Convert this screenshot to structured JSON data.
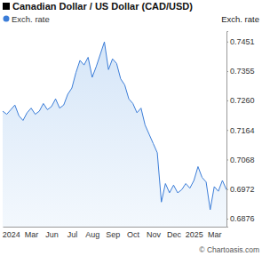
{
  "chart_data": {
    "type": "area",
    "title": "Canadian Dollar / US Dollar (CAD/USD)",
    "ylabel": "Exch. rate",
    "annotations": [
      "© Chartoasis.com"
    ],
    "categories": [
      null,
      null,
      "2024",
      null,
      null,
      null,
      null,
      "Mar",
      null,
      null,
      null,
      null,
      "Jun",
      null,
      null,
      null,
      null,
      "Jul",
      null,
      null,
      null,
      null,
      "Aug",
      null,
      null,
      null,
      null,
      "Sep",
      null,
      null,
      null,
      null,
      "Oct",
      null,
      null,
      null,
      null,
      "Nov",
      null,
      null,
      null,
      null,
      "Dec",
      null,
      null,
      null,
      null,
      "2025",
      null,
      null,
      null,
      null,
      "Mar",
      null,
      null,
      null
    ],
    "series": [
      {
        "name": "Exch. rate",
        "color": "#3b7dd8",
        "values": [
          0.7225,
          0.7215,
          0.723,
          0.7245,
          0.721,
          0.7195,
          0.722,
          0.7235,
          0.7215,
          0.7225,
          0.725,
          0.723,
          0.724,
          0.7265,
          0.7235,
          0.7245,
          0.728,
          0.73,
          0.735,
          0.739,
          0.7375,
          0.74,
          0.7335,
          0.737,
          0.741,
          0.745,
          0.736,
          0.7395,
          0.738,
          0.733,
          0.731,
          0.7265,
          0.725,
          0.722,
          0.7235,
          0.718,
          0.715,
          0.712,
          0.709,
          0.693,
          0.699,
          0.696,
          0.6985,
          0.696,
          0.697,
          0.699,
          0.6975,
          0.7,
          0.7045,
          0.701,
          0.6995,
          0.6905,
          0.698,
          0.6965,
          0.7,
          0.697
        ]
      }
    ],
    "ylim": [
      0.685,
      0.7485
    ],
    "yticks": [
      0.7451,
      0.7355,
      {
        "value": 0.726,
        "label": "0.7260"
      },
      0.7164,
      0.7068,
      0.6972,
      0.6876
    ],
    "grid": false,
    "legend": "top-left"
  }
}
